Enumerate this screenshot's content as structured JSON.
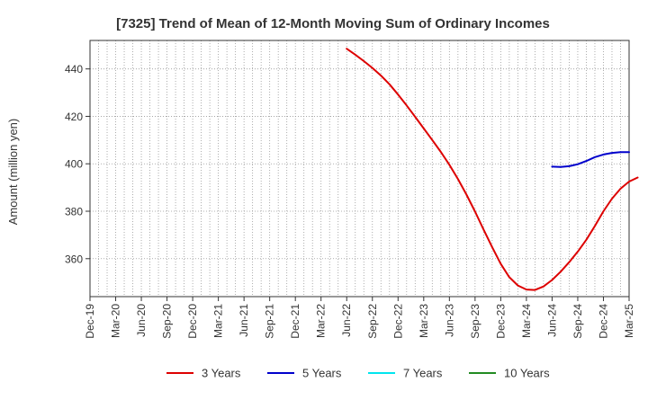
{
  "chart_data": {
    "type": "line",
    "title": "[7325]  Trend of Mean of 12-Month Moving Sum of Ordinary Incomes",
    "xlabel": "",
    "ylabel": "Amount (million yen)",
    "ylim": [
      344,
      452
    ],
    "yticks": [
      360,
      380,
      400,
      420,
      440
    ],
    "x_categories": [
      "Dec-19",
      "Mar-20",
      "Jun-20",
      "Sep-20",
      "Dec-20",
      "Mar-21",
      "Jun-21",
      "Sep-21",
      "Dec-21",
      "Mar-22",
      "Jun-22",
      "Sep-22",
      "Dec-22",
      "Mar-23",
      "Jun-23",
      "Sep-23",
      "Dec-23",
      "Mar-24",
      "Jun-24",
      "Sep-24",
      "Dec-24",
      "Mar-25"
    ],
    "grid": true,
    "legend_position": "bottom",
    "series": [
      {
        "name": "3 Years",
        "color": "#dd0000",
        "points": [
          {
            "x": 30,
            "y": 448.5
          },
          {
            "x": 31,
            "y": 446
          },
          {
            "x": 32,
            "y": 443.3
          },
          {
            "x": 33,
            "y": 440.4
          },
          {
            "x": 34,
            "y": 437.2
          },
          {
            "x": 35,
            "y": 433.5
          },
          {
            "x": 36,
            "y": 429.2
          },
          {
            "x": 37,
            "y": 424.6
          },
          {
            "x": 38,
            "y": 419.8
          },
          {
            "x": 39,
            "y": 414.9
          },
          {
            "x": 40,
            "y": 410
          },
          {
            "x": 41,
            "y": 405
          },
          {
            "x": 42,
            "y": 399.6
          },
          {
            "x": 43,
            "y": 393.6
          },
          {
            "x": 44,
            "y": 387
          },
          {
            "x": 45,
            "y": 379.8
          },
          {
            "x": 46,
            "y": 372.2
          },
          {
            "x": 47,
            "y": 364.8
          },
          {
            "x": 48,
            "y": 357.8
          },
          {
            "x": 49,
            "y": 352.2
          },
          {
            "x": 50,
            "y": 348.7
          },
          {
            "x": 51,
            "y": 347
          },
          {
            "x": 52,
            "y": 346.8
          },
          {
            "x": 53,
            "y": 348.3
          },
          {
            "x": 54,
            "y": 351
          },
          {
            "x": 55,
            "y": 354.5
          },
          {
            "x": 56,
            "y": 358.5
          },
          {
            "x": 57,
            "y": 363
          },
          {
            "x": 58,
            "y": 368
          },
          {
            "x": 59,
            "y": 373.8
          },
          {
            "x": 60,
            "y": 380
          },
          {
            "x": 61,
            "y": 385.3
          },
          {
            "x": 62,
            "y": 389.5
          },
          {
            "x": 63,
            "y": 392.5
          },
          {
            "x": 64,
            "y": 394.2
          }
        ]
      },
      {
        "name": "5 Years",
        "color": "#0000cc",
        "points": [
          {
            "x": 54,
            "y": 398.8
          },
          {
            "x": 55,
            "y": 398.7
          },
          {
            "x": 56,
            "y": 399
          },
          {
            "x": 57,
            "y": 399.8
          },
          {
            "x": 58,
            "y": 401.2
          },
          {
            "x": 59,
            "y": 402.8
          },
          {
            "x": 60,
            "y": 403.9
          },
          {
            "x": 61,
            "y": 404.6
          },
          {
            "x": 62,
            "y": 404.9
          },
          {
            "x": 63,
            "y": 404.9
          }
        ]
      },
      {
        "name": "7 Years",
        "color": "#00e5ee",
        "points": []
      },
      {
        "name": "10 Years",
        "color": "#228b22",
        "points": []
      }
    ]
  }
}
